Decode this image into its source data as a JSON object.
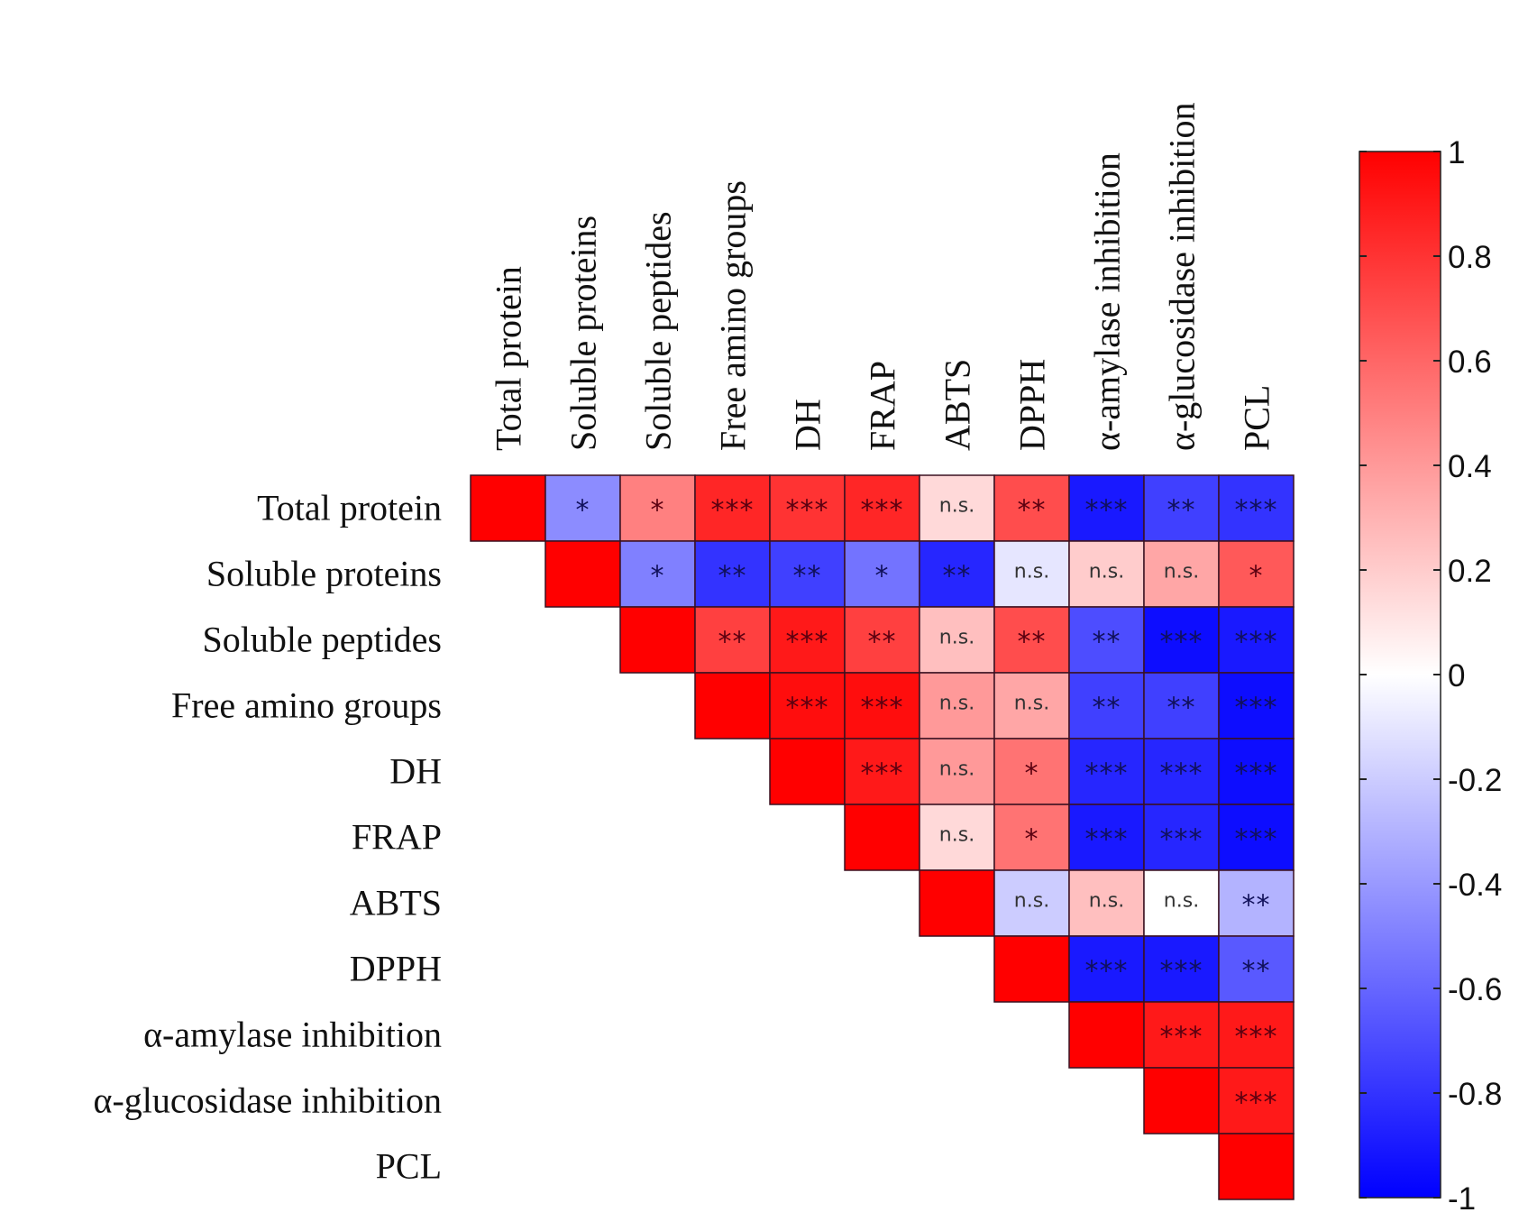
{
  "chart_data": {
    "type": "heatmap",
    "title": "",
    "variables": [
      "Total protein",
      "Soluble proteins",
      "Soluble peptides",
      "Free amino groups",
      "DH",
      "FRAP",
      "ABTS",
      "DPPH",
      "α-amylase inhibition",
      "α-glucosidase inhibition",
      "PCL"
    ],
    "matrix_upper": [
      [
        1,
        -0.45,
        0.5,
        0.85,
        0.8,
        0.85,
        0.15,
        0.7,
        -0.9,
        -0.75,
        -0.8
      ],
      [
        1,
        -0.5,
        -0.8,
        -0.75,
        -0.55,
        -0.85,
        -0.1,
        0.2,
        0.35,
        0.65
      ],
      [
        1,
        0.75,
        0.9,
        0.75,
        0.25,
        0.7,
        -0.7,
        -0.95,
        -0.9
      ],
      [
        1,
        0.95,
        0.95,
        0.4,
        0.35,
        -0.75,
        -0.75,
        -0.95
      ],
      [
        1,
        0.9,
        0.4,
        0.55,
        -0.85,
        -0.85,
        -0.95
      ],
      [
        1,
        0.15,
        0.55,
        -0.9,
        -0.85,
        -0.95
      ],
      [
        1,
        -0.2,
        0.25,
        0.0,
        -0.3
      ],
      [
        1,
        -0.9,
        -0.9,
        -0.65
      ],
      [
        1,
        0.9,
        0.9
      ],
      [
        1,
        0.9
      ],
      [
        1
      ]
    ],
    "significance_upper": [
      [
        "",
        "*",
        "*",
        "***",
        "***",
        "***",
        "n.s.",
        "**",
        "***",
        "**",
        "***"
      ],
      [
        "",
        "*",
        "**",
        "**",
        "*",
        "**",
        "n.s.",
        "n.s.",
        "n.s.",
        "*"
      ],
      [
        "",
        "**",
        "***",
        "**",
        "n.s.",
        "**",
        "**",
        "***",
        "***"
      ],
      [
        "",
        "***",
        "***",
        "n.s.",
        "n.s.",
        "**",
        "**",
        "***"
      ],
      [
        "",
        "***",
        "n.s.",
        "*",
        "***",
        "***",
        "***"
      ],
      [
        "",
        "n.s.",
        "*",
        "***",
        "***",
        "***"
      ],
      [
        "",
        "n.s.",
        "n.s.",
        "n.s.",
        "**"
      ],
      [
        "",
        "***",
        "***",
        "**"
      ],
      [
        "",
        "***",
        "***"
      ],
      [
        "",
        "***"
      ],
      [
        ""
      ]
    ],
    "colorbar": {
      "range": [
        -1,
        1
      ],
      "ticks": [
        "1",
        "0.8",
        "0.6",
        "0.4",
        "0.2",
        "0",
        "-0.2",
        "-0.4",
        "-0.6",
        "-0.8",
        "-1"
      ],
      "tick_values": [
        1,
        0.8,
        0.6,
        0.4,
        0.2,
        0,
        -0.2,
        -0.4,
        -0.6,
        -0.8,
        -1
      ],
      "colors": {
        "negative": "#0000ff",
        "zero": "#ffffff",
        "positive": "#ff0000"
      }
    }
  }
}
